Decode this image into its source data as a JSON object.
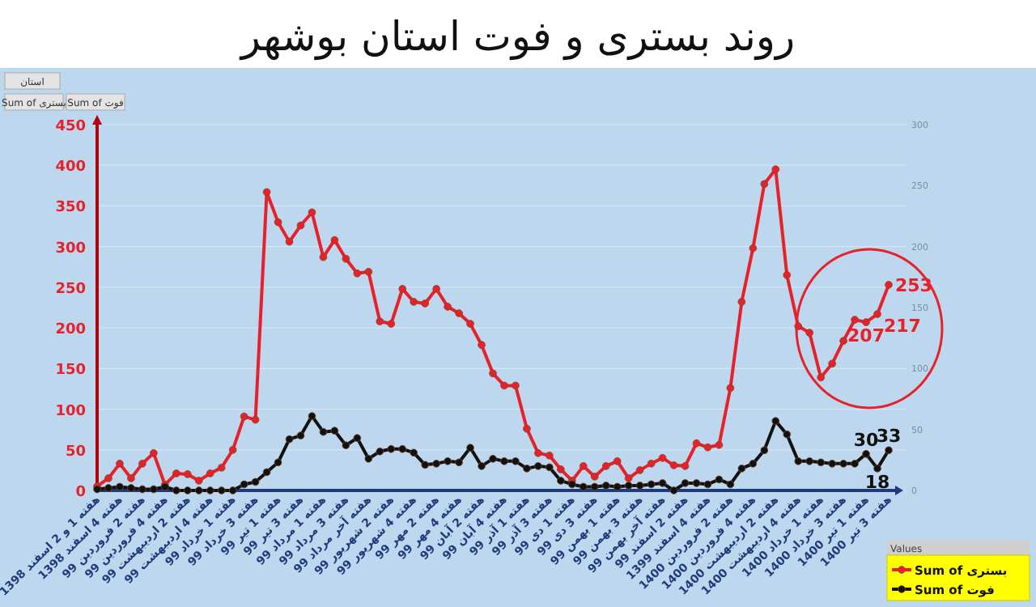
{
  "chart_data": {
    "type": "line",
    "title": "روند بستری و فوت استان بوشهر",
    "categories": [
      "هفته 1 و 2 اسفند 1398",
      null,
      "هفته 4 اسفند 1398",
      null,
      "هفته 2 فروردین 99",
      null,
      "هفته 4 فروردین 99",
      null,
      "هفته 2 اردیبهشت 99",
      null,
      "هفته 4 اردیبهشت 99",
      null,
      "هفته 1 خرداد 99",
      null,
      "هفته 3 خرداد 99",
      null,
      "هفته 1 تیر 99",
      null,
      "هفته 3 تیر 99",
      null,
      "هفته 1 مرداد 99",
      null,
      "هفته 3 مرداد 99",
      null,
      "هفته آخر مرداد 99",
      null,
      "هفته 2 شهریور 99",
      null,
      "هفته 4 شهریور 99",
      null,
      "هفته 2 مهر 99",
      null,
      "هفته 4 مهر 99",
      null,
      "هفته 2 آبان 99",
      null,
      "هفته 4 آبان 99",
      null,
      "هفته 1 آذر 99",
      null,
      "هفته 3 آذر 99",
      null,
      "هفته 1 دی 99",
      null,
      "هفته 3 دی 99",
      null,
      "هفته 1 بهمن 99",
      null,
      "هفته 3 بهمن 99",
      null,
      "هفته آخر بهمن 99",
      null,
      "هفته 2 اسفند 99",
      null,
      "هفته 4 اسفند 1399",
      null,
      "هفته 2 فروردین 1400",
      null,
      "هفته 4 فروردین 1400",
      null,
      "هفته 2 اردیبهشت 1400",
      null,
      "هفته 4 اردیبهشت 1400",
      null,
      "هفته 1 خرداد 1400",
      null,
      "هفته 3 خرداد 1400",
      null,
      "هفته 1 تیر 1400",
      null,
      "هفته 3 تیر 1400"
    ],
    "series": [
      {
        "name": "Sum of بستری",
        "color": "#e8202a",
        "values": [
          5,
          15,
          33,
          15,
          33,
          46,
          7,
          21,
          20,
          12,
          21,
          28,
          50,
          91,
          87,
          367,
          330,
          306,
          326,
          342,
          287,
          308,
          285,
          267,
          269,
          208,
          205,
          248,
          232,
          230,
          248,
          226,
          218,
          205,
          179,
          144,
          129,
          129,
          76,
          46,
          43,
          26,
          12,
          30,
          17,
          30,
          36,
          15,
          25,
          33,
          40,
          31,
          30,
          58,
          53,
          56,
          126,
          232,
          298,
          377,
          395,
          265,
          202,
          194,
          139,
          156,
          184,
          210,
          207,
          217,
          253
        ],
        "value_labels": [
          null,
          null,
          null,
          null,
          null,
          null,
          null,
          null,
          null,
          null,
          null,
          null,
          null,
          null,
          null,
          null,
          null,
          null,
          null,
          null,
          null,
          null,
          null,
          null,
          null,
          null,
          null,
          null,
          null,
          null,
          null,
          null,
          null,
          null,
          null,
          null,
          null,
          null,
          null,
          null,
          null,
          null,
          null,
          null,
          null,
          null,
          null,
          null,
          null,
          null,
          null,
          null,
          null,
          null,
          null,
          null,
          null,
          null,
          null,
          null,
          null,
          null,
          null,
          null,
          null,
          null,
          null,
          null,
          "207",
          "217",
          "253"
        ]
      },
      {
        "name": "Sum of فوت",
        "color": "#111111",
        "axis": "y2",
        "values": [
          1,
          2,
          3,
          2,
          1,
          1,
          3,
          0,
          0,
          0,
          0,
          0,
          0,
          5,
          7,
          15,
          23,
          42,
          45,
          61,
          48,
          49,
          37,
          43,
          26,
          32,
          34,
          34,
          31,
          21,
          22,
          24,
          23,
          35,
          20,
          26,
          24,
          24,
          18,
          20,
          19,
          8,
          5,
          3,
          3,
          4,
          3,
          4,
          4,
          5,
          6,
          0,
          6,
          6,
          5,
          9,
          5,
          18,
          22,
          33,
          57,
          46,
          24,
          24,
          23,
          22,
          22,
          22,
          30,
          18,
          33
        ],
        "value_labels": [
          null,
          null,
          null,
          null,
          null,
          null,
          null,
          null,
          null,
          null,
          null,
          null,
          null,
          null,
          null,
          null,
          null,
          null,
          null,
          null,
          null,
          null,
          null,
          null,
          null,
          null,
          null,
          null,
          null,
          null,
          null,
          null,
          null,
          null,
          null,
          null,
          null,
          null,
          null,
          null,
          null,
          null,
          null,
          null,
          null,
          null,
          null,
          null,
          null,
          null,
          null,
          null,
          null,
          null,
          null,
          null,
          null,
          null,
          null,
          null,
          null,
          null,
          null,
          null,
          null,
          null,
          null,
          null,
          "30",
          "18",
          "33"
        ]
      }
    ],
    "ylim": [
      0,
      450
    ],
    "yticks": [
      0,
      50,
      100,
      150,
      200,
      250,
      300,
      350,
      400,
      450
    ],
    "y2lim": [
      0,
      300
    ],
    "y2ticks": [
      0,
      50,
      100,
      150,
      200,
      250,
      300
    ],
    "legend": "bottom right",
    "legend_title": "Values",
    "grid": "y",
    "marker": "circle",
    "line_style": "solid",
    "annotations": [
      "استان",
      "Sum of بستری",
      "Sum of فوت"
    ]
  }
}
